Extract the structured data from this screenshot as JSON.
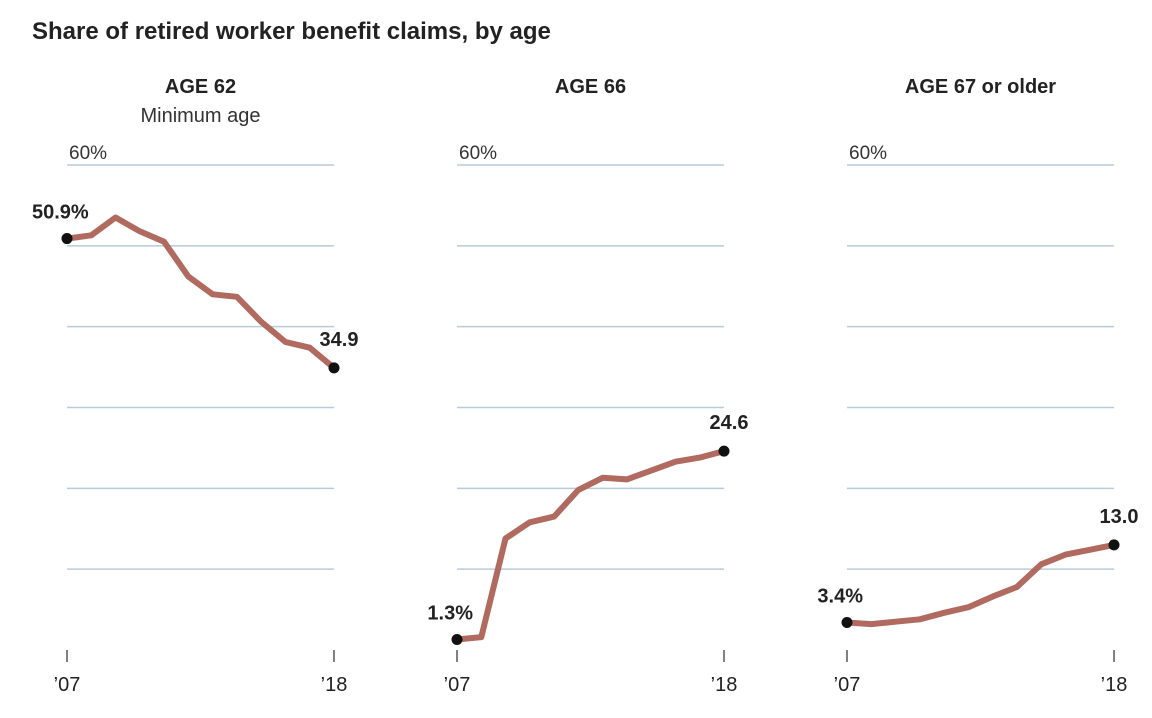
{
  "chart_data": {
    "type": "line",
    "title": "Share of retired worker benefit claims, by age",
    "ylim": [
      0,
      60
    ],
    "y_tick_label": "60%",
    "x": [
      2007,
      2008,
      2009,
      2010,
      2011,
      2012,
      2013,
      2014,
      2015,
      2016,
      2017,
      2018
    ],
    "x_tick_labels": [
      "’07",
      "’18"
    ],
    "colors": {
      "line": "#b06a5f",
      "grid": "#b7ccd9",
      "axis": "#555555",
      "point": "#111111"
    },
    "panels": [
      {
        "name": "age-62",
        "title": "AGE 62",
        "subtitle": "Minimum age",
        "values": [
          50.9,
          51.3,
          53.5,
          51.8,
          50.5,
          46.2,
          44.0,
          43.7,
          40.6,
          38.1,
          37.4,
          34.9
        ],
        "start_label": "50.9%",
        "end_label": "34.9"
      },
      {
        "name": "age-66",
        "title": "AGE 66",
        "subtitle": "",
        "values": [
          1.3,
          1.6,
          13.8,
          15.8,
          16.5,
          19.8,
          21.3,
          21.1,
          22.2,
          23.3,
          23.8,
          24.6
        ],
        "start_label": "1.3%",
        "end_label": "24.6"
      },
      {
        "name": "age-67-or-older",
        "title": "AGE 67 or older",
        "subtitle": "",
        "values": [
          3.4,
          3.2,
          3.5,
          3.8,
          4.6,
          5.3,
          6.6,
          7.8,
          10.6,
          11.8,
          12.4,
          13.0
        ],
        "start_label": "3.4%",
        "end_label": "13.0"
      }
    ]
  }
}
